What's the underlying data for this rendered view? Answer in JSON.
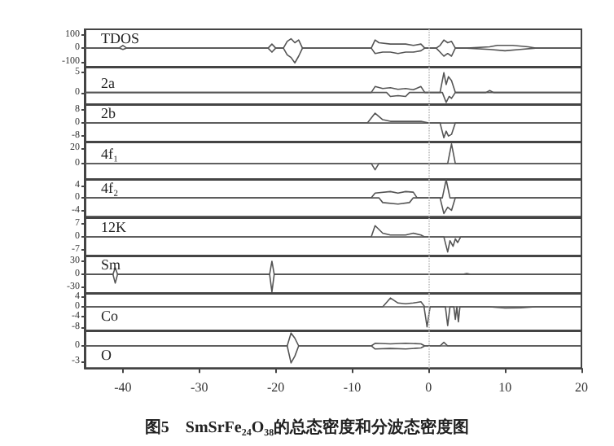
{
  "chart_data": [
    {
      "type": "line",
      "title": "TDOS",
      "xlim": [
        -45,
        20
      ],
      "ylim": [
        -140,
        140
      ],
      "yticks": [
        100,
        0,
        -100
      ],
      "tick_labels": "y",
      "ref_lines": [
        {
          "axis": "x",
          "value": 0,
          "color": "#bbbbbb",
          "line_style": "dotted"
        }
      ],
      "series": [
        {
          "color": "#555555",
          "x": [
            -45,
            -40.5,
            -40,
            -39.5,
            -21,
            -20.5,
            -20,
            -19,
            -18.5,
            -18,
            -17.5,
            -17,
            -16.5,
            -15.5,
            -7.5,
            -7,
            -6.5,
            -5,
            -4,
            -3,
            -2,
            -1,
            -0.5,
            1,
            1.5,
            2,
            2.5,
            3,
            3.5,
            5,
            8,
            9,
            11,
            13,
            14,
            20
          ],
          "values": [
            0,
            0,
            20,
            0,
            0,
            30,
            0,
            0,
            50,
            70,
            40,
            60,
            0,
            0,
            0,
            60,
            40,
            30,
            30,
            30,
            20,
            30,
            0,
            0,
            20,
            60,
            40,
            50,
            0,
            0,
            10,
            20,
            20,
            10,
            0,
            0
          ]
        },
        {
          "color": "#555555",
          "x": [
            -45,
            -40.5,
            -40,
            -39.5,
            -21,
            -20.5,
            -20,
            -19,
            -18.5,
            -18,
            -17.5,
            -17,
            -16.5,
            -15,
            -7.5,
            -7,
            -6,
            -5,
            -4,
            -3,
            -2,
            -1,
            -0.5,
            1,
            1.5,
            2,
            2.5,
            3,
            3.5,
            5,
            8,
            10,
            12,
            14,
            20
          ],
          "values": [
            0,
            0,
            -10,
            0,
            0,
            -30,
            0,
            0,
            -50,
            -70,
            -110,
            -60,
            0,
            0,
            0,
            -40,
            -30,
            -30,
            -40,
            -30,
            -30,
            -20,
            0,
            0,
            -30,
            -60,
            -40,
            -60,
            0,
            0,
            -10,
            -20,
            -10,
            0,
            0
          ]
        }
      ]
    },
    {
      "type": "line",
      "title": "2a",
      "xlim": [
        -45,
        20
      ],
      "ylim": [
        -3,
        6.5
      ],
      "yticks": [
        5,
        0
      ],
      "tick_labels": "y",
      "ref_lines": [
        {
          "axis": "x",
          "value": 0,
          "color": "#bbbbbb",
          "line_style": "dotted"
        }
      ],
      "series": [
        {
          "color": "#555555",
          "x": [
            -45,
            -7.5,
            -7,
            -6,
            -5,
            -4,
            -3,
            -2,
            -1,
            -0.5,
            1.5,
            2,
            2.3,
            2.6,
            3,
            3.5,
            7.5,
            8,
            8.5,
            20
          ],
          "values": [
            0,
            0,
            1.5,
            1,
            1.2,
            0.8,
            1,
            0.7,
            1.5,
            0,
            0,
            5,
            2,
            4,
            3,
            0,
            0,
            0.5,
            0,
            0
          ]
        },
        {
          "color": "#555555",
          "x": [
            -45,
            -5.5,
            -5,
            -4,
            -3,
            -2.5,
            1.8,
            2.3,
            2.7,
            3,
            3.5,
            20
          ],
          "values": [
            0,
            0,
            -1,
            -0.8,
            -1,
            0,
            0,
            -2.5,
            -1,
            -1.5,
            0,
            0
          ]
        }
      ]
    },
    {
      "type": "line",
      "title": "2b",
      "xlim": [
        -45,
        20
      ],
      "ylim": [
        -11.5,
        11.5
      ],
      "yticks": [
        8,
        0,
        -8
      ],
      "tick_labels": "y",
      "ref_lines": [
        {
          "axis": "x",
          "value": 0,
          "color": "#bbbbbb",
          "line_style": "dotted"
        }
      ],
      "series": [
        {
          "color": "#555555",
          "x": [
            -45,
            -8,
            -7,
            -6,
            -5,
            -4,
            -3,
            -2,
            -1,
            0,
            20
          ],
          "values": [
            0,
            0,
            6,
            2,
            1,
            1,
            1,
            1,
            1,
            0,
            0
          ]
        },
        {
          "color": "#555555",
          "x": [
            -45,
            1.5,
            2,
            2.3,
            2.6,
            3,
            3.5,
            20
          ],
          "values": [
            0,
            0,
            -9,
            -5,
            -8,
            -7,
            0,
            0
          ]
        }
      ]
    },
    {
      "type": "line",
      "title": "4f₁",
      "xlim": [
        -45,
        20
      ],
      "ylim": [
        -20,
        28
      ],
      "yticks": [
        20,
        0
      ],
      "tick_labels": "y",
      "ref_lines": [
        {
          "axis": "x",
          "value": 0,
          "color": "#bbbbbb",
          "line_style": "dotted"
        }
      ],
      "series": [
        {
          "color": "#555555",
          "x": [
            -45,
            2.5,
            3,
            3.5,
            20
          ],
          "values": [
            0,
            0,
            25,
            0,
            0
          ]
        },
        {
          "color": "#555555",
          "x": [
            -45,
            -7.5,
            -7,
            -6.5,
            20
          ],
          "values": [
            0,
            0,
            -8,
            0,
            0
          ]
        }
      ]
    },
    {
      "type": "line",
      "title": "4f₂",
      "xlim": [
        -45,
        20
      ],
      "ylim": [
        -6,
        6
      ],
      "yticks": [
        4,
        0,
        -4
      ],
      "tick_labels": "y",
      "ref_lines": [
        {
          "axis": "x",
          "value": 0,
          "color": "#bbbbbb",
          "line_style": "dotted"
        }
      ],
      "series": [
        {
          "color": "#555555",
          "x": [
            -45,
            -7.5,
            -7,
            -5,
            -4,
            -3,
            -2,
            -1.5,
            1.8,
            2.3,
            2.8,
            20
          ],
          "values": [
            0,
            0,
            1.5,
            2,
            1.5,
            2,
            1.8,
            0,
            0,
            5.8,
            0,
            0
          ]
        },
        {
          "color": "#555555",
          "x": [
            -45,
            -6.5,
            -6,
            -4,
            -2.5,
            -2,
            1.5,
            2,
            2.5,
            3,
            3.5,
            20
          ],
          "values": [
            0,
            0,
            -1.5,
            -2,
            -1.5,
            0,
            0,
            -5,
            -3,
            -4,
            0,
            0
          ]
        }
      ]
    },
    {
      "type": "line",
      "title": "12K",
      "xlim": [
        -45,
        20
      ],
      "ylim": [
        -10,
        10
      ],
      "yticks": [
        7,
        0,
        -7
      ],
      "tick_labels": "y",
      "ref_lines": [
        {
          "axis": "x",
          "value": 0,
          "color": "#bbbbbb",
          "line_style": "dotted"
        }
      ],
      "series": [
        {
          "color": "#555555",
          "x": [
            -45,
            -7.5,
            -7,
            -6,
            -5,
            -4,
            -3,
            -2,
            -1,
            -0.5,
            20
          ],
          "values": [
            0,
            0,
            6,
            2,
            1,
            1,
            1,
            2,
            1,
            0,
            0
          ]
        },
        {
          "color": "#555555",
          "x": [
            -45,
            2,
            2.5,
            2.8,
            3.2,
            3.5,
            3.8,
            4.2,
            20
          ],
          "values": [
            0,
            0,
            -8,
            -2,
            -5,
            -1,
            -3,
            0,
            0
          ]
        }
      ]
    },
    {
      "type": "line",
      "title": "Sm",
      "xlim": [
        -45,
        20
      ],
      "ylim": [
        -43,
        43
      ],
      "yticks": [
        30,
        0,
        -30
      ],
      "tick_labels": "y",
      "ref_lines": [
        {
          "axis": "x",
          "value": 0,
          "color": "#bbbbbb",
          "line_style": "dotted"
        }
      ],
      "series": [
        {
          "color": "#555555",
          "x": [
            -45,
            -41.3,
            -41,
            -40.7,
            -20.8,
            -20.5,
            -20.2,
            4.5,
            5,
            5.5,
            20
          ],
          "values": [
            0,
            0,
            15,
            0,
            0,
            30,
            0,
            0,
            2,
            0,
            0
          ]
        },
        {
          "color": "#555555",
          "x": [
            -45,
            -41.3,
            -41,
            -40.7,
            -20.8,
            -20.5,
            -20.2,
            20
          ],
          "values": [
            0,
            0,
            -20,
            0,
            0,
            -40,
            0,
            0
          ]
        }
      ]
    },
    {
      "type": "line",
      "title": "Co",
      "xlim": [
        -45,
        20
      ],
      "ylim": [
        -9.5,
        5.5
      ],
      "yticks": [
        4,
        0,
        -4,
        -8
      ],
      "tick_labels": "y",
      "ref_lines": [
        {
          "axis": "x",
          "value": 0,
          "color": "#bbbbbb",
          "line_style": "dotted"
        }
      ],
      "series": [
        {
          "color": "#555555",
          "x": [
            -45,
            -6,
            -5,
            -4,
            -3,
            -2,
            -1,
            -0.5,
            20
          ],
          "values": [
            0,
            0,
            3.5,
            1.5,
            1.2,
            1.5,
            2,
            0,
            0
          ]
        },
        {
          "color": "#555555",
          "x": [
            -45,
            -0.6,
            -0.2,
            0.2,
            2.2,
            2.5,
            2.8,
            3.3,
            3.5,
            3.7,
            3.9,
            4.1,
            4.3,
            8,
            10,
            12,
            14,
            20
          ],
          "values": [
            0,
            0,
            -8,
            0,
            0,
            -7.5,
            0,
            0,
            -5,
            0,
            -6,
            0,
            0,
            0,
            -0.5,
            -0.4,
            0,
            0
          ]
        }
      ]
    },
    {
      "type": "line",
      "title": "O",
      "xlim": [
        -45,
        20
      ],
      "xticks": [
        -40,
        -30,
        -20,
        -10,
        0,
        10,
        20
      ],
      "ylim": [
        -4.3,
        3
      ],
      "yticks": [
        0,
        -3
      ],
      "ref_lines": [
        {
          "axis": "x",
          "value": 0,
          "color": "#bbbbbb",
          "line_style": "dotted"
        }
      ],
      "annotations": [
        "图5　SmSrFe₂₄O₃₈的总态密度和分波态密度图"
      ],
      "series": [
        {
          "color": "#555555",
          "x": [
            -45,
            -18.5,
            -18,
            -17.5,
            -17,
            -7.5,
            -7,
            -5,
            -3,
            -1,
            -0.5,
            1.5,
            2,
            2.5,
            20
          ],
          "values": [
            0,
            0,
            2.5,
            1.5,
            0,
            0,
            0.5,
            0.4,
            0.5,
            0.4,
            0,
            0,
            0.7,
            0,
            0
          ]
        },
        {
          "color": "#555555",
          "x": [
            -45,
            -18.5,
            -18,
            -17.5,
            -17,
            -7.5,
            -7,
            -5,
            -3,
            -1,
            -0.5,
            20
          ],
          "values": [
            0,
            0,
            -3.3,
            -2,
            0,
            0,
            -0.6,
            -0.5,
            -0.6,
            -0.4,
            0,
            0
          ]
        }
      ]
    }
  ]
}
